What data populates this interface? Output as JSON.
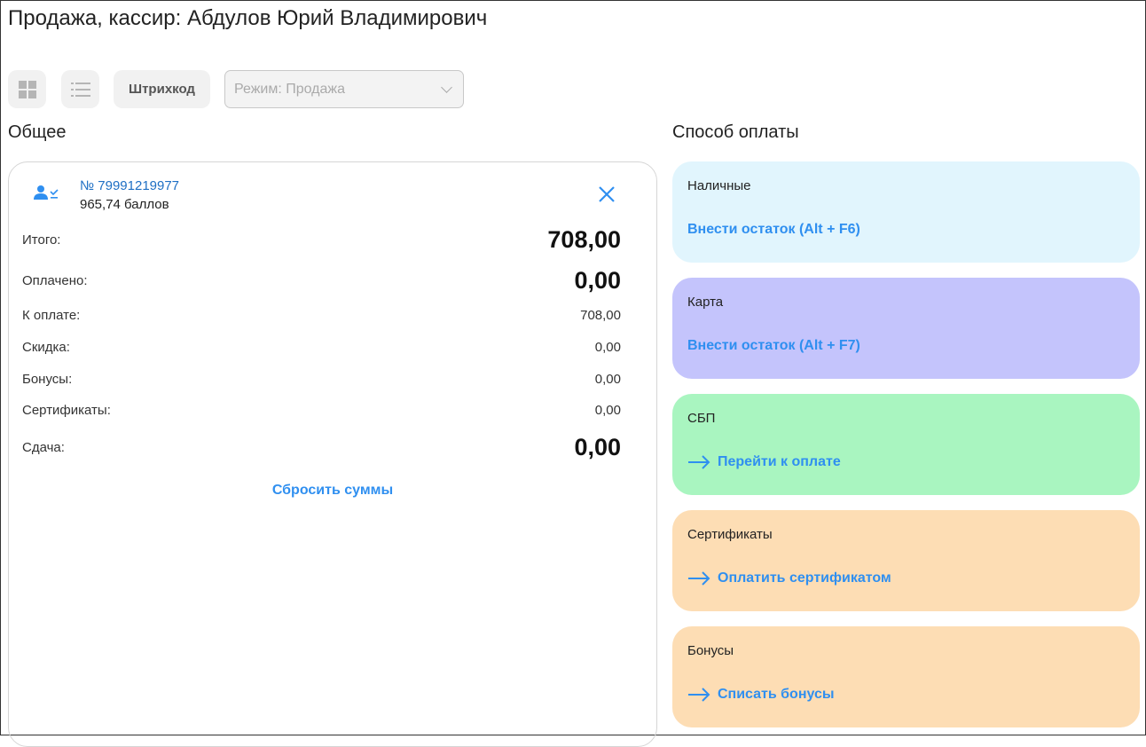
{
  "title": "Продажа, кассир: Абдулов Юрий Владимирович",
  "toolbar": {
    "grid_icon": "grid-view-icon",
    "list_icon": "list-view-icon",
    "barcode_label": "Штрихкод",
    "mode_value": "Режим: Продажа"
  },
  "general": {
    "heading": "Общее",
    "client_phone": "№ 79991219977",
    "client_points": "965,74 баллов",
    "rows": [
      {
        "label": "Итого:",
        "value": "708,00"
      },
      {
        "label": "Оплачено:",
        "value": "0,00"
      },
      {
        "label": "К оплате:",
        "value": "708,00"
      },
      {
        "label": "Скидка:",
        "value": "0,00"
      },
      {
        "label": "Бонусы:",
        "value": "0,00"
      },
      {
        "label": "Сертификаты:",
        "value": "0,00"
      },
      {
        "label": "Сдача:",
        "value": "0,00"
      }
    ],
    "reset_label": "Сбросить суммы"
  },
  "payment": {
    "heading": "Способ оплаты",
    "methods": [
      {
        "label": "Наличные",
        "action": "Внести остаток (Alt + F6)",
        "color": "#e1f5fd"
      },
      {
        "label": "Карта",
        "action": "Внести остаток (Alt + F7)",
        "color": "#c4c4fc"
      },
      {
        "label": "СБП",
        "action": "Перейти к оплате",
        "color": "#a9f5c0"
      },
      {
        "label": "Сертификаты",
        "action": "Оплатить сертификатом",
        "color": "#fdddb4"
      },
      {
        "label": "Бонусы",
        "action": "Списать бонусы",
        "color": "#fdddb4"
      }
    ]
  }
}
